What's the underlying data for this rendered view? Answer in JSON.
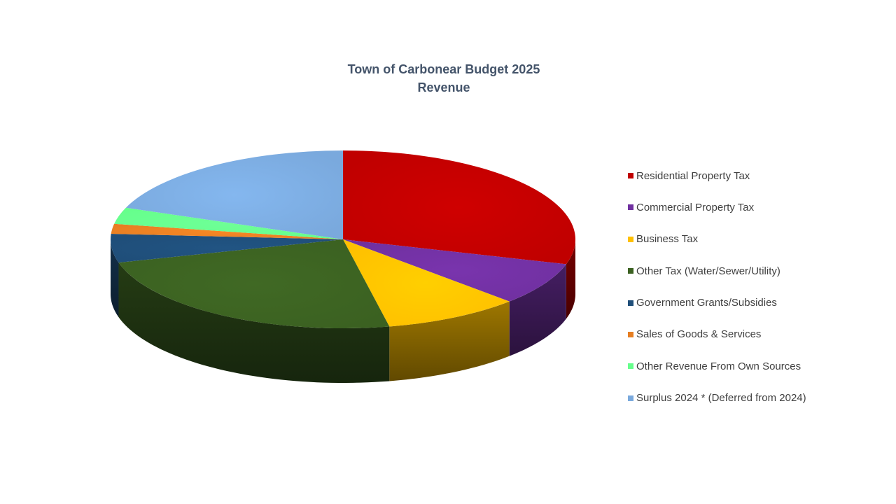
{
  "chart_data": {
    "type": "pie",
    "title": "Town of Carbonear Budget 2025",
    "subtitle": "Revenue",
    "legend_position": "right",
    "style": "3d",
    "series": [
      {
        "name": "Residential Property Tax",
        "value": 29.5,
        "color": "#c00000"
      },
      {
        "name": "Commercial Property Tax",
        "value": 7.8,
        "color": "#7030a0"
      },
      {
        "name": "Business Tax",
        "value": 9.5,
        "color": "#ffc000"
      },
      {
        "name": "Other Tax (Water/Sewer/Utility)",
        "value": 24.0,
        "color": "#3b6121"
      },
      {
        "name": "Government Grants/Subsidies",
        "value": 5.2,
        "color": "#1f4e79"
      },
      {
        "name": "Sales of Goods & Services",
        "value": 1.8,
        "color": "#e67e22"
      },
      {
        "name": "Other Revenue From Own Sources",
        "value": 3.0,
        "color": "#66ff8c"
      },
      {
        "name": "Surplus 2024 * (Deferred from 2024)",
        "value": 19.2,
        "color": "#7aa9dd"
      }
    ]
  }
}
